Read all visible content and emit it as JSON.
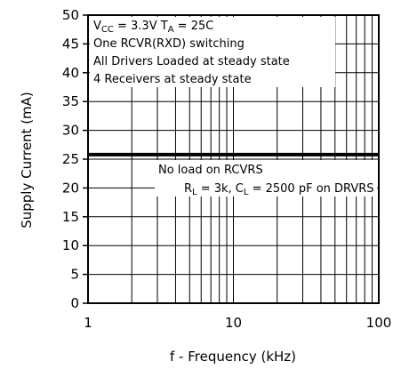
{
  "chart_data": {
    "type": "line",
    "xscale": "log",
    "xlim": [
      1,
      100
    ],
    "ylim": [
      0,
      50
    ],
    "xlabel": "f - Frequency (kHz)",
    "ylabel": "Supply Current (mA)",
    "x_ticks": [
      1,
      10,
      100
    ],
    "x_tick_labels": [
      "1",
      "10",
      "100"
    ],
    "y_ticks": [
      0,
      5,
      10,
      15,
      20,
      25,
      30,
      35,
      40,
      45,
      50
    ],
    "y_tick_labels": [
      "0",
      "5",
      "10",
      "15",
      "20",
      "25",
      "30",
      "35",
      "40",
      "45",
      "50"
    ],
    "grid": true,
    "series": [
      {
        "x": [
          1,
          100
        ],
        "values": [
          25.8,
          25.8
        ],
        "color": "#000000"
      }
    ],
    "annotations": {
      "top": {
        "conditions": [
          {
            "base": "V",
            "sub": "CC",
            "rest": " = 3.3V "
          },
          {
            "base": "T",
            "sub": "A",
            "rest": " = 25C"
          }
        ],
        "lines": [
          "One RCVR(RXD) switching",
          "All Drivers Loaded at steady state",
          "4 Receivers at steady state"
        ]
      },
      "bottom": {
        "line1": "No load on RCVRS",
        "line2": [
          {
            "base": "R",
            "sub": "L",
            "rest": " = 3k, "
          },
          {
            "base": "C",
            "sub": "L",
            "rest": " = 2500 pF on DRVRS"
          }
        ]
      }
    }
  }
}
